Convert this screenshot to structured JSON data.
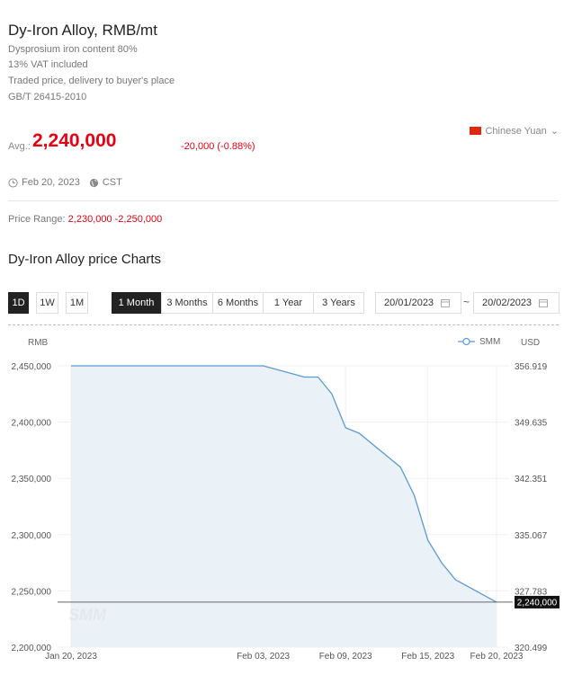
{
  "header": {
    "title": "Dy-Iron Alloy, RMB/mt",
    "specs": [
      "Dysprosium iron content 80%",
      "13% VAT included",
      "Traded price, delivery to buyer's place",
      "GB/T 26415-2010"
    ],
    "currency": "Chinese Yuan"
  },
  "price": {
    "avg_label": "Avg.:",
    "avg_value": "2,240,000",
    "change": "-20,000 (-0.88%)",
    "date": "Feb 20, 2023",
    "timezone": "CST",
    "range_label": "Price Range:",
    "range_value": "2,230,000 -2,250,000"
  },
  "charts": {
    "title": "Dy-Iron Alloy price Charts",
    "granularity": [
      {
        "label": "1D",
        "active": true
      },
      {
        "label": "1W",
        "active": false
      },
      {
        "label": "1M",
        "active": false
      }
    ],
    "ranges": [
      {
        "label": "1 Month",
        "active": true
      },
      {
        "label": "3 Months",
        "active": false
      },
      {
        "label": "6 Months",
        "active": false
      },
      {
        "label": "1 Year",
        "active": false
      },
      {
        "label": "3 Years",
        "active": false
      }
    ],
    "start_date": "20/01/2023",
    "end_date": "20/02/2023",
    "tilde": "~"
  },
  "chart_data": {
    "type": "area",
    "title": "",
    "xlabel": "",
    "ylabel": "RMB",
    "y2label": "USD",
    "legend": "top-right",
    "series": [
      {
        "name": "SMM",
        "color": "#5b9bd5",
        "x": [
          "2023-01-20",
          "2023-01-31",
          "2023-02-01",
          "2023-02-02",
          "2023-02-03",
          "2023-02-06",
          "2023-02-07",
          "2023-02-08",
          "2023-02-09",
          "2023-02-10",
          "2023-02-13",
          "2023-02-14",
          "2023-02-15",
          "2023-02-16",
          "2023-02-17",
          "2023-02-20"
        ],
        "values": [
          2450000,
          2450000,
          2450000,
          2450000,
          2450000,
          2440000,
          2440000,
          2425000,
          2395000,
          2390000,
          2360000,
          2335000,
          2295000,
          2275000,
          2260000,
          2240000
        ]
      }
    ],
    "x_ticks": [
      "Jan 20, 2023",
      "Feb 03, 2023",
      "Feb 09, 2023",
      "Feb 15, 2023",
      "Feb 20, 2023"
    ],
    "x_tick_index": [
      0,
      4,
      8,
      12,
      15
    ],
    "y_ticks": [
      "2,200,000",
      "2,250,000",
      "2,300,000",
      "2,350,000",
      "2,400,000",
      "2,450,000"
    ],
    "y_tick_values": [
      2200000,
      2250000,
      2300000,
      2350000,
      2400000,
      2450000
    ],
    "y2_ticks": [
      "320.499",
      "327.783",
      "335.067",
      "342.351",
      "349.635",
      "356.919"
    ],
    "ylim": [
      2200000,
      2450000
    ],
    "current_value_label": "2,240,000",
    "current_value": 2240000,
    "grid": true
  }
}
